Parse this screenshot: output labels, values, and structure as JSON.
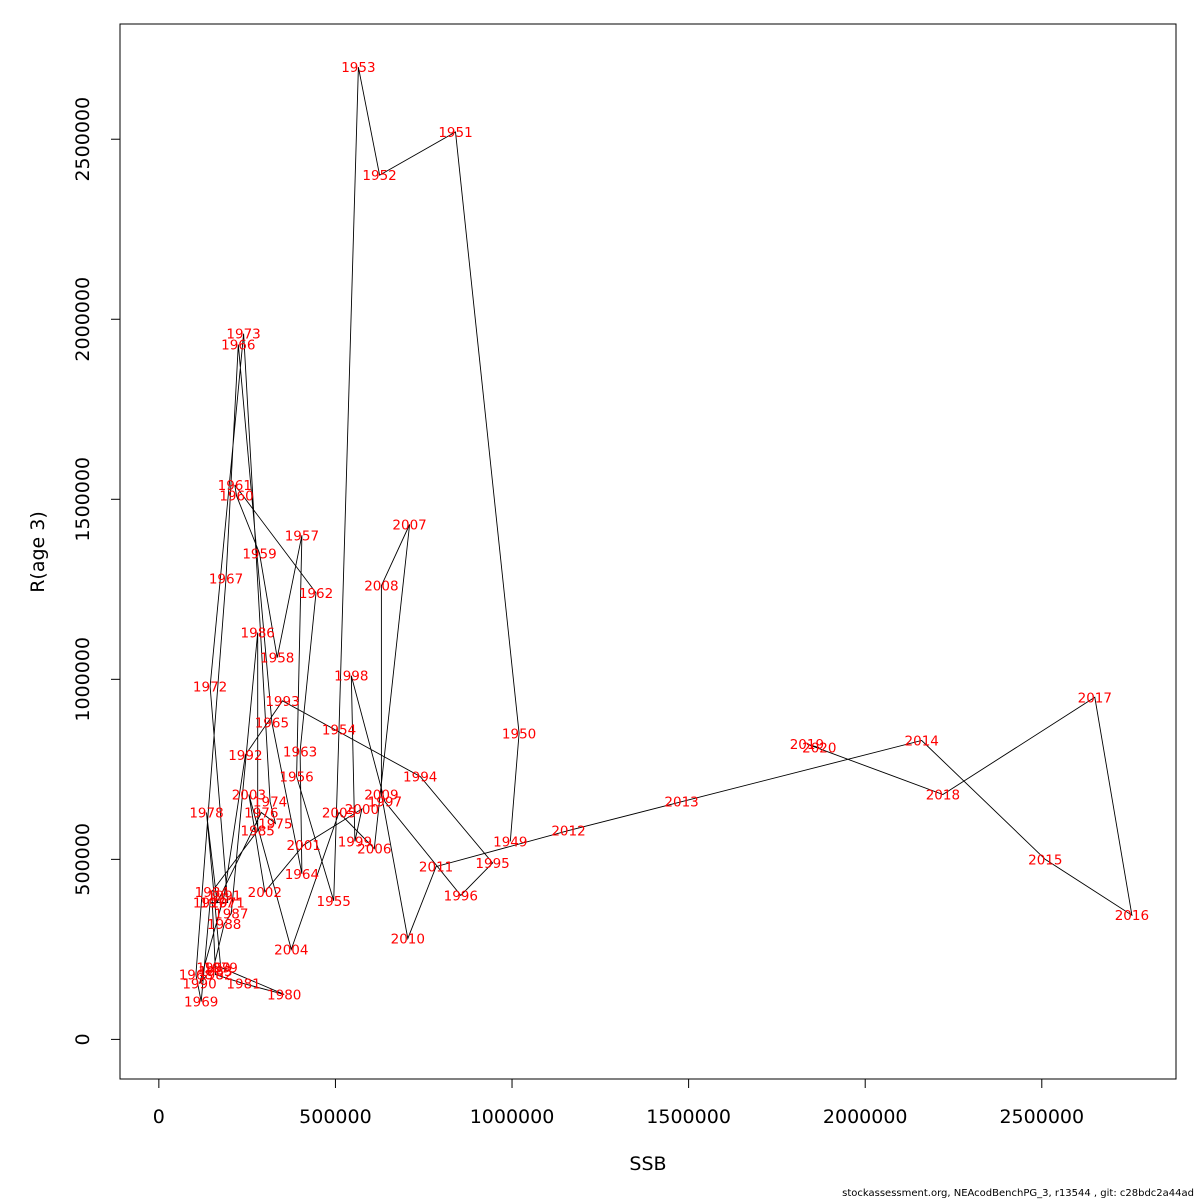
{
  "chart_data": {
    "type": "line",
    "xlabel": "SSB",
    "ylabel": "R(age 3)",
    "xlim": [
      -110000,
      2880000
    ],
    "ylim": [
      -110000,
      2820000
    ],
    "xticks": [
      0,
      500000,
      1000000,
      1500000,
      2000000,
      2500000
    ],
    "xtick_labels": [
      "0",
      "500000",
      "1000000",
      "1500000",
      "2000000",
      "2500000"
    ],
    "yticks": [
      0,
      500000,
      1000000,
      1500000,
      2000000,
      2500000
    ],
    "ytick_labels": [
      "0",
      "500000",
      "1000000",
      "1500000",
      "2000000",
      "2500000"
    ],
    "grid": false,
    "line_color": "#000000",
    "label_color": "#ff0000",
    "points": [
      {
        "label": "1949",
        "x": 995000,
        "y": 550000
      },
      {
        "label": "1950",
        "x": 1020000,
        "y": 850000
      },
      {
        "label": "1951",
        "x": 840000,
        "y": 2520000
      },
      {
        "label": "1952",
        "x": 625000,
        "y": 2400000
      },
      {
        "label": "1953",
        "x": 565000,
        "y": 2700000
      },
      {
        "label": "1954",
        "x": 510000,
        "y": 860000
      },
      {
        "label": "1955",
        "x": 495000,
        "y": 385000
      },
      {
        "label": "1956",
        "x": 390000,
        "y": 730000
      },
      {
        "label": "1957",
        "x": 405000,
        "y": 1400000
      },
      {
        "label": "1958",
        "x": 335000,
        "y": 1060000
      },
      {
        "label": "1959",
        "x": 285000,
        "y": 1350000
      },
      {
        "label": "1960",
        "x": 220000,
        "y": 1510000
      },
      {
        "label": "1961",
        "x": 215000,
        "y": 1540000
      },
      {
        "label": "1962",
        "x": 445000,
        "y": 1240000
      },
      {
        "label": "1963",
        "x": 400000,
        "y": 800000
      },
      {
        "label": "1964",
        "x": 405000,
        "y": 460000
      },
      {
        "label": "1965",
        "x": 320000,
        "y": 880000
      },
      {
        "label": "1966",
        "x": 225000,
        "y": 1930000
      },
      {
        "label": "1967",
        "x": 190000,
        "y": 1280000
      },
      {
        "label": "1968",
        "x": 105000,
        "y": 180000
      },
      {
        "label": "1969",
        "x": 120000,
        "y": 105000
      },
      {
        "label": "1970",
        "x": 145000,
        "y": 380000
      },
      {
        "label": "1971",
        "x": 195000,
        "y": 380000
      },
      {
        "label": "1972",
        "x": 145000,
        "y": 980000
      },
      {
        "label": "1973",
        "x": 240000,
        "y": 1960000
      },
      {
        "label": "1974",
        "x": 315000,
        "y": 660000
      },
      {
        "label": "1975",
        "x": 330000,
        "y": 600000
      },
      {
        "label": "1976",
        "x": 290000,
        "y": 630000
      },
      {
        "label": "1977",
        "x": 165000,
        "y": 380000
      },
      {
        "label": "1978",
        "x": 135000,
        "y": 630000
      },
      {
        "label": "1979",
        "x": 175000,
        "y": 200000
      },
      {
        "label": "1980",
        "x": 355000,
        "y": 125000
      },
      {
        "label": "1981",
        "x": 240000,
        "y": 155000
      },
      {
        "label": "1982",
        "x": 160000,
        "y": 180000
      },
      {
        "label": "1983",
        "x": 160000,
        "y": 190000
      },
      {
        "label": "1984",
        "x": 150000,
        "y": 410000
      },
      {
        "label": "1985",
        "x": 280000,
        "y": 580000
      },
      {
        "label": "1986",
        "x": 280000,
        "y": 1130000
      },
      {
        "label": "1987",
        "x": 205000,
        "y": 350000
      },
      {
        "label": "1988",
        "x": 185000,
        "y": 320000
      },
      {
        "label": "1989",
        "x": 155000,
        "y": 200000
      },
      {
        "label": "1990",
        "x": 115000,
        "y": 155000
      },
      {
        "label": "1991",
        "x": 185000,
        "y": 400000
      },
      {
        "label": "1992",
        "x": 245000,
        "y": 790000
      },
      {
        "label": "1993",
        "x": 350000,
        "y": 940000
      },
      {
        "label": "1994",
        "x": 740000,
        "y": 730000
      },
      {
        "label": "1995",
        "x": 945000,
        "y": 490000
      },
      {
        "label": "1996",
        "x": 855000,
        "y": 400000
      },
      {
        "label": "1997",
        "x": 640000,
        "y": 660000
      },
      {
        "label": "1998",
        "x": 545000,
        "y": 1010000
      },
      {
        "label": "1999",
        "x": 555000,
        "y": 550000
      },
      {
        "label": "2000",
        "x": 575000,
        "y": 640000
      },
      {
        "label": "2001",
        "x": 410000,
        "y": 540000
      },
      {
        "label": "2002",
        "x": 300000,
        "y": 410000
      },
      {
        "label": "2003",
        "x": 255000,
        "y": 680000
      },
      {
        "label": "2004",
        "x": 375000,
        "y": 250000
      },
      {
        "label": "2005",
        "x": 510000,
        "y": 630000
      },
      {
        "label": "2006",
        "x": 610000,
        "y": 530000
      },
      {
        "label": "2007",
        "x": 710000,
        "y": 1430000
      },
      {
        "label": "2008",
        "x": 630000,
        "y": 1260000
      },
      {
        "label": "2009",
        "x": 630000,
        "y": 680000
      },
      {
        "label": "2010",
        "x": 705000,
        "y": 280000
      },
      {
        "label": "2011",
        "x": 785000,
        "y": 480000
      },
      {
        "label": "2012",
        "x": 1160000,
        "y": 580000
      },
      {
        "label": "2013",
        "x": 1480000,
        "y": 660000
      },
      {
        "label": "2014",
        "x": 2160000,
        "y": 830000
      },
      {
        "label": "2015",
        "x": 2510000,
        "y": 500000
      },
      {
        "label": "2016",
        "x": 2755000,
        "y": 345000
      },
      {
        "label": "2017",
        "x": 2650000,
        "y": 950000
      },
      {
        "label": "2018",
        "x": 2220000,
        "y": 680000
      },
      {
        "label": "2019",
        "x": 1835000,
        "y": 820000
      },
      {
        "label": "2020",
        "x": 1870000,
        "y": 810000
      }
    ]
  },
  "footer_text": "stockassessment.org, NEAcodBenchPG_3, r13544 , git: c28bdc2a44ad"
}
